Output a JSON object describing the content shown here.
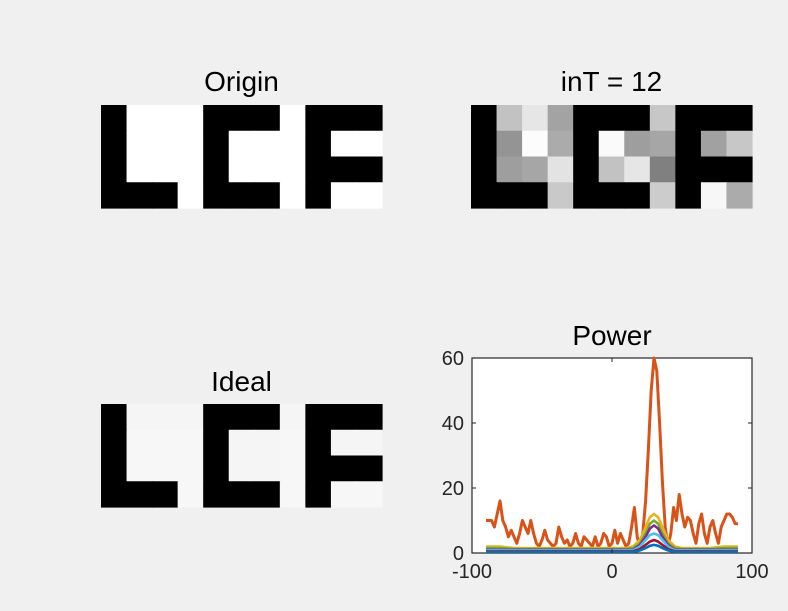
{
  "chart_data": [
    {
      "type": "heatmap",
      "title": "Origin",
      "rows": 4,
      "cols": 11,
      "values": [
        [
          0,
          1,
          1,
          1,
          0,
          0,
          0,
          1,
          0,
          0,
          0
        ],
        [
          0,
          1,
          1,
          1,
          0,
          1,
          1,
          1,
          0,
          1,
          1
        ],
        [
          0,
          1,
          1,
          1,
          0,
          1,
          1,
          1,
          0,
          0,
          0
        ],
        [
          0,
          0,
          0,
          1,
          0,
          0,
          0,
          1,
          0,
          1,
          1
        ]
      ]
    },
    {
      "type": "heatmap",
      "title": "inT = 12",
      "rows": 4,
      "cols": 11,
      "values": [
        [
          0,
          0.76,
          0.9,
          0.64,
          0,
          0,
          0,
          0.78,
          0,
          0,
          0
        ],
        [
          0,
          0.58,
          0.99,
          0.67,
          0,
          0.98,
          0.62,
          0.65,
          0,
          0.63,
          0.78
        ],
        [
          0,
          0.62,
          0.65,
          0.89,
          0,
          0.76,
          0.9,
          0.5,
          0,
          0,
          0
        ],
        [
          0,
          0,
          0,
          0.79,
          0,
          0,
          0,
          0.8,
          0,
          0.97,
          0.67
        ]
      ]
    },
    {
      "type": "heatmap",
      "title": "Ideal",
      "rows": 4,
      "cols": 11,
      "values": [
        [
          0,
          0.96,
          0.96,
          0.96,
          0,
          0,
          0,
          0.96,
          0,
          0,
          0
        ],
        [
          0,
          0.97,
          0.97,
          0.97,
          0,
          0.96,
          0.96,
          0.97,
          0,
          0.96,
          0.96
        ],
        [
          0,
          0.97,
          0.97,
          0.97,
          0,
          0.96,
          0.96,
          0.97,
          0,
          0,
          0
        ],
        [
          0,
          0,
          0,
          0.97,
          0,
          0,
          0,
          0.97,
          0,
          0.97,
          0.97
        ]
      ]
    },
    {
      "type": "line",
      "title": "Power",
      "xlim": [
        -100,
        100
      ],
      "ylim": [
        0,
        60
      ],
      "xticks": [
        "-100",
        "0",
        "100"
      ],
      "yticks": [
        "0",
        "20",
        "40",
        "60"
      ],
      "series": [
        {
          "color": "#d95319",
          "x": [
            -90,
            -88,
            -86,
            -84,
            -82,
            -80,
            -78,
            -76,
            -74,
            -72,
            -70,
            -68,
            -66,
            -64,
            -62,
            -60,
            -58,
            -56,
            -54,
            -52,
            -50,
            -48,
            -46,
            -44,
            -42,
            -40,
            -38,
            -36,
            -34,
            -32,
            -30,
            -28,
            -26,
            -24,
            -22,
            -20,
            -18,
            -16,
            -14,
            -12,
            -10,
            -8,
            -6,
            -4,
            -2,
            0,
            2,
            4,
            6,
            8,
            10,
            12,
            14,
            16,
            18,
            20,
            22,
            24,
            26,
            28,
            30,
            32,
            34,
            36,
            38,
            40,
            42,
            44,
            46,
            48,
            50,
            52,
            54,
            56,
            58,
            60,
            62,
            64,
            66,
            68,
            70,
            72,
            74,
            76,
            78,
            80,
            82,
            84,
            86,
            88,
            90
          ],
          "y": [
            10,
            10,
            10,
            8,
            12,
            16,
            10,
            8,
            5,
            7,
            5,
            3,
            6,
            10,
            8,
            6,
            10,
            6,
            3,
            2,
            4,
            7,
            4,
            3,
            2,
            3,
            8,
            5,
            3,
            4,
            2,
            3,
            6,
            3,
            2,
            5,
            4,
            3,
            2,
            5,
            2,
            3,
            6,
            5,
            2,
            3,
            7,
            3,
            6,
            4,
            2,
            3,
            8,
            14,
            5,
            2,
            6,
            16,
            32,
            50,
            60,
            56,
            40,
            22,
            8,
            2,
            6,
            14,
            10,
            18,
            12,
            8,
            11,
            10,
            6,
            3,
            9,
            12,
            6,
            3,
            8,
            10,
            6,
            3,
            8,
            10,
            12,
            12,
            11,
            9,
            9
          ]
        },
        {
          "color": "#edb120",
          "x": [
            -90,
            -80,
            -70,
            -60,
            -50,
            -40,
            -30,
            -20,
            -10,
            0,
            10,
            15,
            20,
            24,
            27,
            30,
            33,
            36,
            40,
            45,
            50,
            60,
            70,
            80,
            90
          ],
          "y": [
            2,
            2,
            1.5,
            1.5,
            1.5,
            1.5,
            1.5,
            1.5,
            1.5,
            1.5,
            1.5,
            2,
            4,
            8,
            11,
            12,
            11,
            8,
            4,
            2,
            1.5,
            1.5,
            1.5,
            2,
            2
          ]
        },
        {
          "color": "#77ac30",
          "x": [
            -90,
            -80,
            -70,
            -60,
            -50,
            -40,
            -30,
            -20,
            -10,
            0,
            10,
            15,
            20,
            24,
            27,
            30,
            33,
            36,
            40,
            45,
            50,
            60,
            70,
            80,
            90
          ],
          "y": [
            1.5,
            1.5,
            1.2,
            1.2,
            1.2,
            1.2,
            1.2,
            1.2,
            1.2,
            1.2,
            1.2,
            1.5,
            3,
            6,
            9,
            10,
            9,
            6,
            3,
            1.5,
            1.2,
            1.2,
            1.2,
            1.5,
            1.5
          ]
        },
        {
          "color": "#7e2f8e",
          "x": [
            -90,
            -60,
            -30,
            0,
            15,
            20,
            24,
            27,
            30,
            33,
            36,
            40,
            45,
            60,
            90
          ],
          "y": [
            1,
            1,
            1,
            1,
            1,
            2.5,
            5,
            7.5,
            8.5,
            7.5,
            5,
            2.5,
            1,
            1,
            1
          ]
        },
        {
          "color": "#4dbeee",
          "x": [
            -90,
            -60,
            -30,
            0,
            15,
            20,
            24,
            27,
            30,
            33,
            36,
            40,
            45,
            60,
            90
          ],
          "y": [
            0.8,
            0.8,
            0.8,
            0.8,
            0.8,
            2,
            4,
            5.5,
            6,
            5.5,
            4,
            2,
            0.8,
            0.8,
            0.8
          ]
        },
        {
          "color": "#a2142f",
          "x": [
            -90,
            -60,
            -30,
            0,
            15,
            20,
            24,
            27,
            30,
            33,
            36,
            40,
            45,
            60,
            90
          ],
          "y": [
            0.5,
            0.5,
            0.5,
            0.5,
            0.5,
            1.2,
            2.5,
            3.5,
            4,
            3.5,
            2.5,
            1.2,
            0.5,
            0.5,
            0.5
          ]
        },
        {
          "color": "#0072bd",
          "x": [
            -90,
            -60,
            -30,
            0,
            15,
            20,
            24,
            27,
            30,
            33,
            36,
            40,
            45,
            60,
            90
          ],
          "y": [
            0.3,
            0.3,
            0.3,
            0.3,
            0.3,
            0.8,
            1.5,
            2.2,
            2.5,
            2.2,
            1.5,
            0.8,
            0.3,
            0.3,
            0.3
          ]
        }
      ]
    }
  ]
}
